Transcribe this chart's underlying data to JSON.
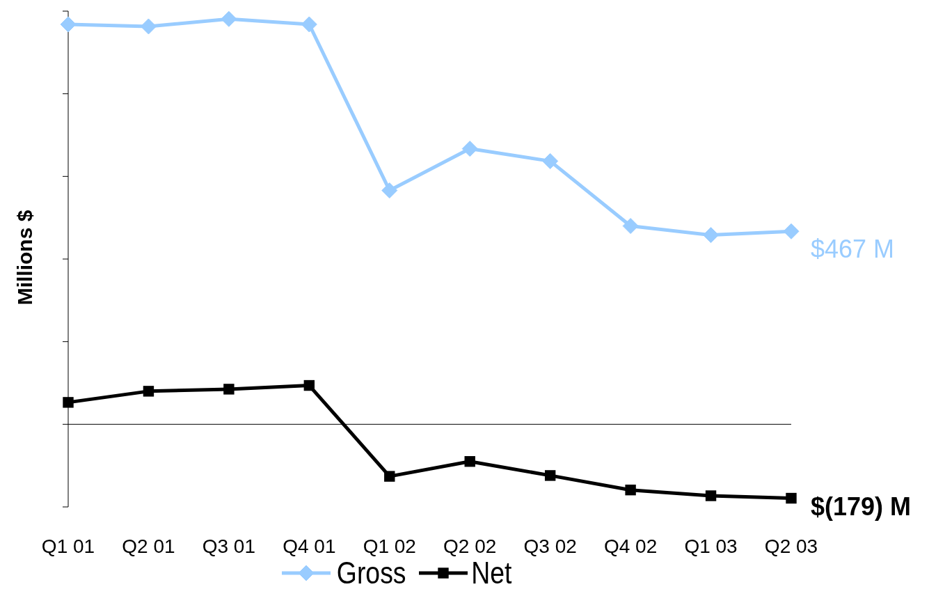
{
  "chart_data": {
    "type": "line",
    "ylabel": "Millions $",
    "legend": "bottom",
    "grid": false,
    "ylim": [
      -200,
      1000
    ],
    "yticks": [
      {
        "value": -200,
        "label": null
      },
      {
        "value": 0,
        "label": null
      },
      {
        "value": 200,
        "label": null
      },
      {
        "value": 400,
        "label": null
      },
      {
        "value": 600,
        "label": null
      },
      {
        "value": 800,
        "label": null
      },
      {
        "value": 1000,
        "label": null
      }
    ],
    "categories": [
      "Q1 01",
      "Q2 01",
      "Q3 01",
      "Q4 01",
      "Q1 02",
      "Q2 02",
      "Q3 02",
      "Q4 02",
      "Q1 03",
      "Q2 03"
    ],
    "series": [
      {
        "name": "Gross",
        "color": "#99ccff",
        "marker": "diamond",
        "values": [
          968,
          963,
          981,
          968,
          566,
          667,
          637,
          480,
          458,
          467
        ],
        "value_labels": [
          null,
          null,
          null,
          null,
          null,
          null,
          null,
          null,
          null,
          "$467 M"
        ]
      },
      {
        "name": "Net",
        "color": "#000000",
        "marker": "square",
        "values": [
          53,
          80,
          85,
          94,
          -126,
          -90,
          -124,
          -159,
          -173,
          -179
        ],
        "value_labels": [
          null,
          null,
          null,
          null,
          null,
          null,
          null,
          null,
          null,
          "$(179) M"
        ]
      }
    ]
  }
}
